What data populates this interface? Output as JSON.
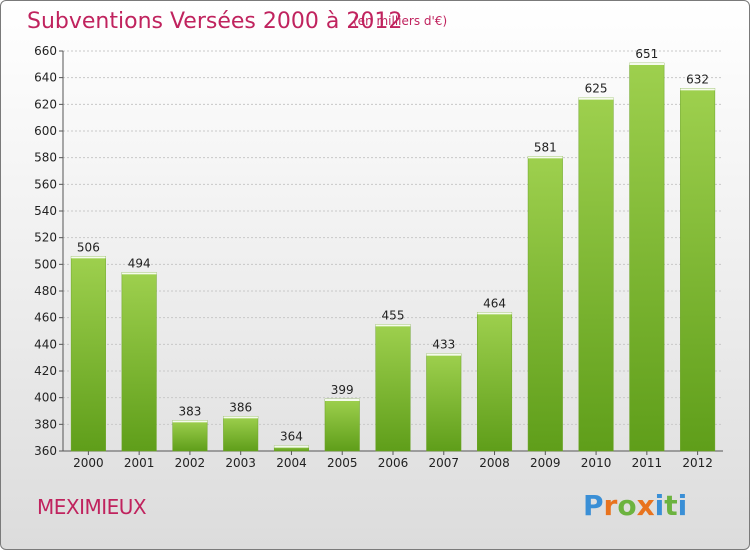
{
  "title": "Subventions Versées 2000 à 2012",
  "subtitle": "(en milliers d'€)",
  "commune": "MEXIMIEUX",
  "logo": {
    "letters": [
      "P",
      "r",
      "o",
      "x",
      "i",
      "t",
      "i"
    ],
    "colors": [
      "#3a8fd6",
      "#e8731e",
      "#6cb33f",
      "#e8731e",
      "#3a8fd6",
      "#6cb33f",
      "#3a8fd6"
    ]
  },
  "colors": {
    "bar_top": "#9ed04e",
    "bar_bottom": "#5f9e1a",
    "accent": "#c0235e"
  },
  "chart_data": {
    "type": "bar",
    "title": "Subventions Versées 2000 à 2012",
    "subtitle": "(en milliers d'€)",
    "xlabel": "",
    "ylabel": "",
    "categories": [
      "2000",
      "2001",
      "2002",
      "2003",
      "2004",
      "2005",
      "2006",
      "2007",
      "2008",
      "2009",
      "2010",
      "2011",
      "2012"
    ],
    "values": [
      506,
      494,
      383,
      386,
      364,
      399,
      455,
      433,
      464,
      581,
      625,
      651,
      632
    ],
    "ylim": [
      360,
      660
    ],
    "yticks": [
      360,
      380,
      400,
      420,
      440,
      460,
      480,
      500,
      520,
      540,
      560,
      580,
      600,
      620,
      640,
      660
    ],
    "grid": true
  }
}
